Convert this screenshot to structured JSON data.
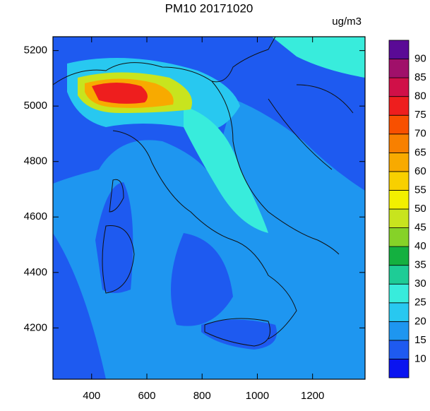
{
  "chart_data": {
    "type": "contour-map",
    "title": "PM10 20171020",
    "units": "ug/m3",
    "xlim": [
      260,
      1390
    ],
    "ylim": [
      4015,
      5250
    ],
    "xticks": [
      400,
      600,
      800,
      1000,
      1200
    ],
    "yticks": [
      4200,
      4400,
      4600,
      4800,
      5000,
      5200
    ],
    "levels": [
      10,
      15,
      20,
      25,
      30,
      35,
      40,
      45,
      50,
      55,
      60,
      65,
      70,
      75,
      80,
      85,
      90
    ],
    "colors": [
      "#0a14f0",
      "#1e5af0",
      "#1e96f0",
      "#28c8f0",
      "#38ecdc",
      "#1ecc96",
      "#14b040",
      "#86d228",
      "#c8e41e",
      "#f2f000",
      "#f8d000",
      "#f8aa00",
      "#f88000",
      "#f85000",
      "#ee1e1e",
      "#d01048",
      "#a0106a",
      "#5a0a96"
    ]
  }
}
